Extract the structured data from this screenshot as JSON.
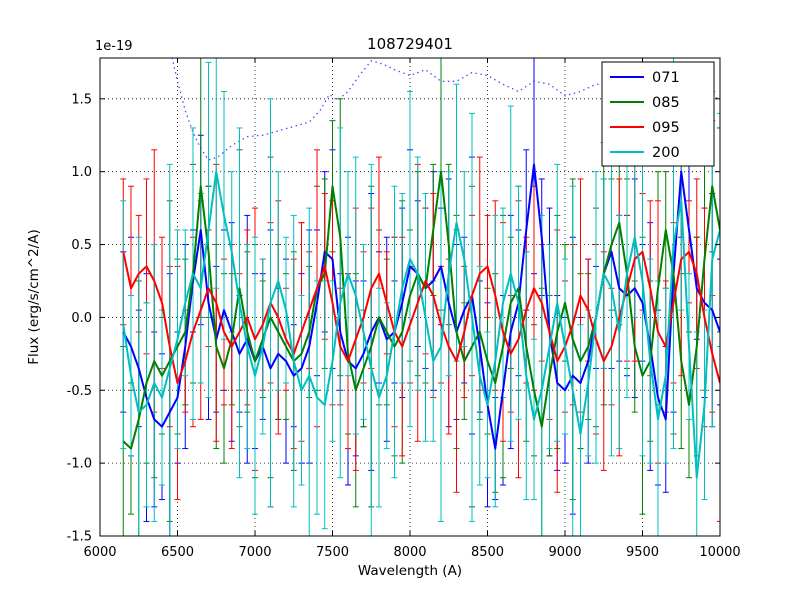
{
  "chart_data": {
    "type": "line",
    "title": "108729401",
    "xlabel": "Wavelength (A)",
    "ylabel": "Flux (erg/s/cm^2/A)",
    "offset_text": "1e-19",
    "xlim": [
      6000,
      10000
    ],
    "ylim": [
      -1.5,
      1.78
    ],
    "grid": true,
    "x_ticks": {
      "values": [
        6000,
        6500,
        7000,
        7500,
        8000,
        8500,
        9000,
        9500,
        10000
      ],
      "labels": [
        "6000",
        "6500",
        "7000",
        "7500",
        "8000",
        "8500",
        "9000",
        "9500",
        "10000"
      ]
    },
    "y_ticks": {
      "values": [
        -1.5,
        -1.0,
        -0.5,
        0.0,
        0.5,
        1.0,
        1.5
      ],
      "labels": [
        "-1.5",
        "-1.0",
        "-0.5",
        "0.0",
        "0.5",
        "1.0",
        "1.5"
      ]
    },
    "legend": {
      "position": "upper right",
      "entries": [
        {
          "label": "071",
          "color": "#0000ff"
        },
        {
          "label": "085",
          "color": "#008000"
        },
        {
          "label": "095",
          "color": "#ff0000"
        },
        {
          "label": "200",
          "color": "#00bfbf"
        }
      ]
    },
    "x": {
      "start": 6150,
      "step": 50,
      "count": 78
    },
    "series": [
      {
        "name": "071",
        "color": "#0000ff",
        "values": [
          -0.1,
          -0.2,
          -0.35,
          -0.55,
          -0.7,
          -0.75,
          -0.65,
          -0.55,
          -0.2,
          0.25,
          0.6,
          0.1,
          -0.15,
          0.05,
          -0.1,
          -0.25,
          -0.15,
          -0.3,
          -0.2,
          -0.35,
          -0.25,
          -0.3,
          -0.4,
          -0.35,
          -0.2,
          0.1,
          0.45,
          0.4,
          -0.1,
          -0.3,
          -0.35,
          -0.25,
          -0.1,
          0.0,
          -0.15,
          -0.1,
          0.1,
          0.35,
          0.3,
          0.2,
          0.25,
          0.35,
          0.1,
          -0.1,
          0.05,
          0.15,
          -0.2,
          -0.6,
          -0.9,
          -0.5,
          -0.1,
          0.1,
          0.6,
          1.05,
          0.55,
          -0.1,
          -0.45,
          -0.5,
          -0.4,
          -0.45,
          -0.3,
          0.0,
          0.3,
          0.45,
          0.2,
          0.15,
          0.2,
          0.1,
          -0.2,
          -0.55,
          -0.7,
          0.3,
          1.0,
          0.6,
          0.2,
          0.1,
          0.05,
          -0.1
        ],
        "errors": [
          0.55,
          0.75,
          0.4,
          0.85,
          0.6,
          0.5,
          0.95,
          0.45,
          0.7,
          0.35,
          0.65,
          0.8,
          0.5
        ]
      },
      {
        "name": "085",
        "color": "#008000",
        "values": [
          -0.85,
          -0.9,
          -0.7,
          -0.45,
          -0.3,
          -0.4,
          -0.3,
          -0.2,
          -0.1,
          0.3,
          0.9,
          0.45,
          -0.2,
          -0.35,
          -0.15,
          0.2,
          -0.1,
          -0.3,
          -0.15,
          0.0,
          -0.1,
          -0.2,
          -0.3,
          -0.25,
          -0.1,
          0.2,
          0.3,
          0.9,
          0.55,
          -0.25,
          -0.5,
          -0.35,
          -0.2,
          0.0,
          -0.1,
          -0.2,
          -0.1,
          0.15,
          0.3,
          0.2,
          0.6,
          1.0,
          0.5,
          -0.1,
          -0.3,
          -0.2,
          -0.1,
          -0.3,
          -0.45,
          -0.2,
          0.1,
          0.2,
          -0.2,
          -0.5,
          -0.75,
          -0.4,
          -0.1,
          0.1,
          -0.15,
          -0.3,
          -0.2,
          0.0,
          0.3,
          0.5,
          0.65,
          0.3,
          -0.2,
          -0.4,
          -0.3,
          0.2,
          0.6,
          0.3,
          -0.3,
          -0.6,
          -0.2,
          0.4,
          0.9,
          0.6
        ],
        "errors": [
          0.65,
          0.45,
          0.95,
          0.55,
          0.8,
          0.4,
          1.1,
          0.6,
          0.5,
          0.75,
          0.9,
          0.45,
          0.7
        ]
      },
      {
        "name": "095",
        "color": "#ff0000",
        "values": [
          0.45,
          0.2,
          0.3,
          0.35,
          0.25,
          0.1,
          -0.2,
          -0.45,
          -0.3,
          -0.1,
          0.05,
          0.2,
          0.1,
          -0.1,
          -0.2,
          -0.1,
          0.0,
          -0.15,
          -0.05,
          0.1,
          0.0,
          -0.15,
          -0.25,
          -0.1,
          0.05,
          0.2,
          0.35,
          0.1,
          -0.2,
          -0.3,
          -0.15,
          0.0,
          0.2,
          0.3,
          0.1,
          -0.1,
          -0.2,
          -0.05,
          0.1,
          0.25,
          0.15,
          -0.05,
          -0.2,
          -0.3,
          -0.1,
          0.15,
          0.3,
          0.35,
          0.15,
          -0.1,
          -0.25,
          -0.15,
          0.05,
          0.2,
          0.1,
          -0.1,
          -0.3,
          -0.2,
          -0.05,
          0.15,
          0.05,
          -0.15,
          -0.3,
          -0.2,
          0.0,
          0.2,
          0.4,
          0.45,
          0.2,
          -0.1,
          -0.2,
          0.1,
          0.4,
          0.45,
          0.3,
          0.0,
          -0.25,
          -0.45
        ],
        "errors": [
          0.5,
          0.7,
          0.4,
          0.6,
          0.9,
          0.45,
          0.55,
          0.8,
          0.35,
          0.65,
          0.75,
          0.4,
          0.95
        ]
      },
      {
        "name": "200",
        "color": "#00bfbf",
        "values": [
          -0.05,
          -0.4,
          -0.65,
          -0.6,
          -0.45,
          -0.55,
          -0.35,
          -0.15,
          0.1,
          0.3,
          0.2,
          0.6,
          1.0,
          0.7,
          0.45,
          0.1,
          -0.2,
          -0.4,
          -0.2,
          0.1,
          0.25,
          0.05,
          -0.3,
          -0.5,
          -0.4,
          -0.55,
          -0.6,
          -0.3,
          0.1,
          0.3,
          0.15,
          -0.1,
          -0.35,
          -0.55,
          -0.4,
          -0.1,
          0.2,
          0.4,
          0.3,
          0.0,
          -0.3,
          -0.2,
          0.3,
          0.65,
          0.4,
          0.0,
          -0.4,
          -0.6,
          -0.3,
          0.1,
          0.3,
          0.1,
          -0.4,
          -0.7,
          -0.5,
          -0.2,
          0.1,
          -0.2,
          -0.5,
          -0.8,
          -0.45,
          0.0,
          0.3,
          0.2,
          -0.1,
          0.3,
          0.55,
          0.25,
          -0.3,
          -0.7,
          -0.4,
          0.5,
          0.8,
          -0.2,
          -1.1,
          -0.6,
          0.4,
          0.6
        ],
        "errors": [
          0.85,
          0.55,
          1.2,
          0.7,
          0.95,
          0.6,
          1.4,
          0.75,
          0.5,
          1.0,
          0.65,
          1.15,
          0.8
        ]
      }
    ],
    "reference_line": {
      "name": "dotted-reference-curve",
      "style": "dotted",
      "color": "#4d4dff",
      "points": [
        [
          6450,
          1.85
        ],
        [
          6500,
          1.62
        ],
        [
          6550,
          1.42
        ],
        [
          6600,
          1.27
        ],
        [
          6650,
          1.16
        ],
        [
          6700,
          1.08
        ],
        [
          6760,
          1.1
        ],
        [
          6850,
          1.18
        ],
        [
          6950,
          1.24
        ],
        [
          7050,
          1.25
        ],
        [
          7150,
          1.28
        ],
        [
          7250,
          1.31
        ],
        [
          7350,
          1.34
        ],
        [
          7420,
          1.42
        ],
        [
          7480,
          1.53
        ],
        [
          7530,
          1.49
        ],
        [
          7600,
          1.55
        ],
        [
          7680,
          1.67
        ],
        [
          7750,
          1.76
        ],
        [
          7820,
          1.74
        ],
        [
          7900,
          1.7
        ],
        [
          8000,
          1.66
        ],
        [
          8100,
          1.7
        ],
        [
          8200,
          1.62
        ],
        [
          8300,
          1.62
        ],
        [
          8400,
          1.68
        ],
        [
          8500,
          1.66
        ],
        [
          8600,
          1.6
        ],
        [
          8700,
          1.55
        ],
        [
          8800,
          1.62
        ],
        [
          8900,
          1.6
        ],
        [
          9000,
          1.52
        ],
        [
          9100,
          1.55
        ],
        [
          9200,
          1.6
        ],
        [
          9300,
          1.6
        ],
        [
          9400,
          1.6
        ],
        [
          9500,
          1.61
        ],
        [
          9600,
          1.56
        ],
        [
          9700,
          1.6
        ],
        [
          9800,
          1.55
        ],
        [
          9900,
          1.5
        ],
        [
          10000,
          1.51
        ]
      ]
    }
  }
}
